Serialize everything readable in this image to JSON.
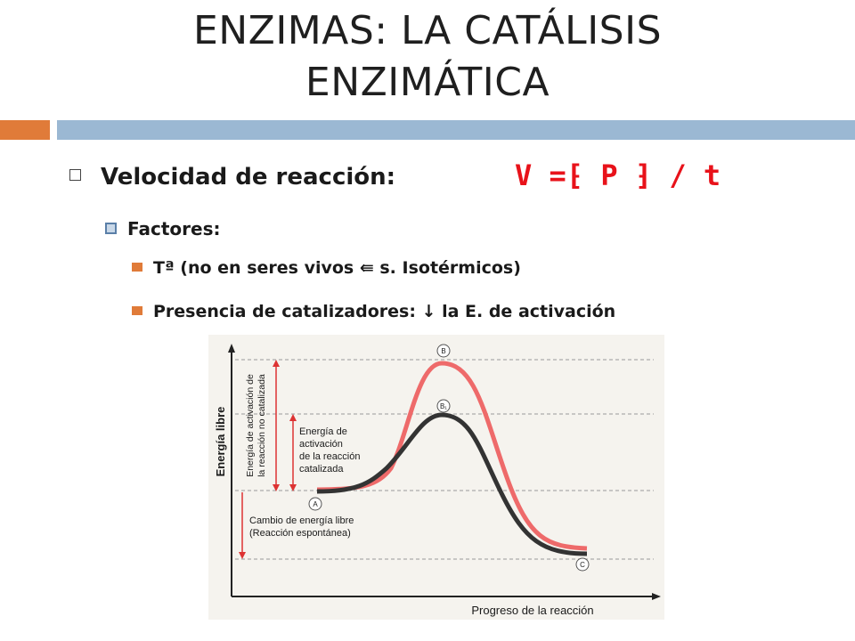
{
  "slide": {
    "title_line1": "ENZIMAS: LA CATÁLISIS",
    "title_line2": "ENZIMÁTICA"
  },
  "bullets": {
    "velocidad_label": "Velocidad de reacción:",
    "formula": "V =⁅ P ⁆ / t",
    "factores_label": "Factores:",
    "temperatura": "Tª (no en seres vivos ⇚ s. Isotérmicos)",
    "catalizadores": "Presencia de catalizadores: ↓ la E. de activación"
  },
  "diagram": {
    "y_axis_label": "Energía libre",
    "x_axis_label": "Progreso de la reacción",
    "point_a": "A",
    "point_b": "B",
    "point_b1": "B₁",
    "point_c": "C",
    "label_uncatalyzed_line1": "Energía de activación de",
    "label_uncatalyzed_line2": "la reacción no catalizada",
    "label_catalyzed_line1": "Energía de",
    "label_catalyzed_line2": "activación",
    "label_catalyzed_line3": "de la reacción",
    "label_catalyzed_line4": "catalizada",
    "label_free_energy_line1": "Cambio de energía libre",
    "label_free_energy_line2": "(Reacción espontánea)",
    "curve_uncatalyzed_color": "#ee6a6a",
    "curve_catalyzed_color": "#333333"
  }
}
